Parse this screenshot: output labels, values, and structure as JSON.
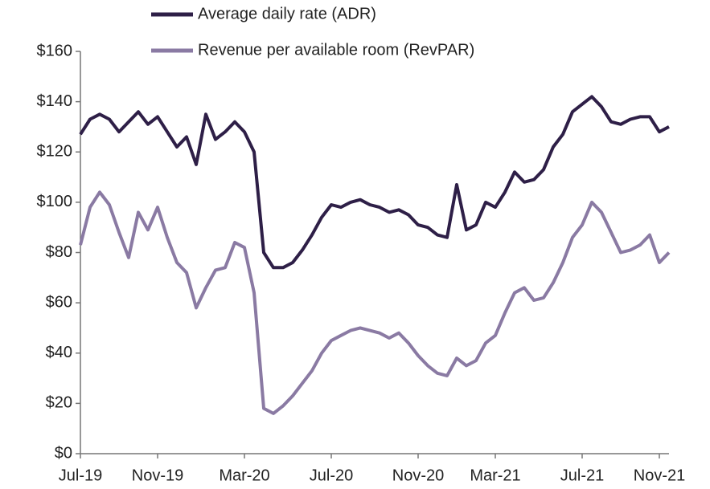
{
  "chart_data": {
    "type": "line",
    "categories": [
      "Jul-19",
      null,
      null,
      null,
      null,
      null,
      null,
      null,
      "Nov-19",
      null,
      null,
      null,
      null,
      null,
      null,
      null,
      null,
      "Mar-20",
      null,
      null,
      null,
      null,
      null,
      null,
      null,
      null,
      "Jul-20",
      null,
      null,
      null,
      null,
      null,
      null,
      null,
      null,
      "Nov-20",
      null,
      null,
      null,
      null,
      null,
      null,
      null,
      "Mar-21",
      null,
      null,
      null,
      null,
      null,
      null,
      null,
      null,
      "Jul-21",
      null,
      null,
      null,
      null,
      null,
      null,
      null,
      "Nov-21",
      null
    ],
    "series": [
      {
        "name": "Average daily rate (ADR)",
        "color": "#2e1f47",
        "values": [
          127,
          133,
          135,
          133,
          128,
          132,
          136,
          131,
          134,
          128,
          122,
          126,
          115,
          135,
          125,
          128,
          132,
          128,
          120,
          80,
          74,
          74,
          76,
          81,
          87,
          94,
          99,
          98,
          100,
          101,
          99,
          98,
          96,
          97,
          95,
          91,
          90,
          87,
          86,
          107,
          89,
          91,
          100,
          98,
          104,
          112,
          108,
          109,
          113,
          122,
          127,
          136,
          139,
          142,
          138,
          132,
          131,
          133,
          134,
          134,
          128,
          130
        ]
      },
      {
        "name": "Revenue per available room (RevPAR)",
        "color": "#8a7aa3",
        "values": [
          83,
          98,
          104,
          99,
          88,
          78,
          96,
          89,
          98,
          86,
          76,
          72,
          58,
          66,
          73,
          74,
          84,
          82,
          64,
          18,
          16,
          19,
          23,
          28,
          33,
          40,
          45,
          47,
          49,
          50,
          49,
          48,
          46,
          48,
          44,
          39,
          35,
          32,
          31,
          38,
          35,
          37,
          44,
          47,
          56,
          64,
          66,
          61,
          62,
          68,
          76,
          86,
          91,
          100,
          96,
          88,
          80,
          81,
          83,
          87,
          76,
          80
        ]
      }
    ],
    "ylim": [
      0,
      160
    ],
    "yticks": [
      {
        "value": 0,
        "label": "$0"
      },
      {
        "value": 20,
        "label": "$20"
      },
      {
        "value": 40,
        "label": "$40"
      },
      {
        "value": 60,
        "label": "$60"
      },
      {
        "value": 80,
        "label": "$80"
      },
      {
        "value": 100,
        "label": "$100"
      },
      {
        "value": 120,
        "label": "$120"
      },
      {
        "value": 140,
        "label": "$140"
      },
      {
        "value": 160,
        "label": "$160"
      }
    ],
    "grid": false,
    "legend": "top"
  }
}
